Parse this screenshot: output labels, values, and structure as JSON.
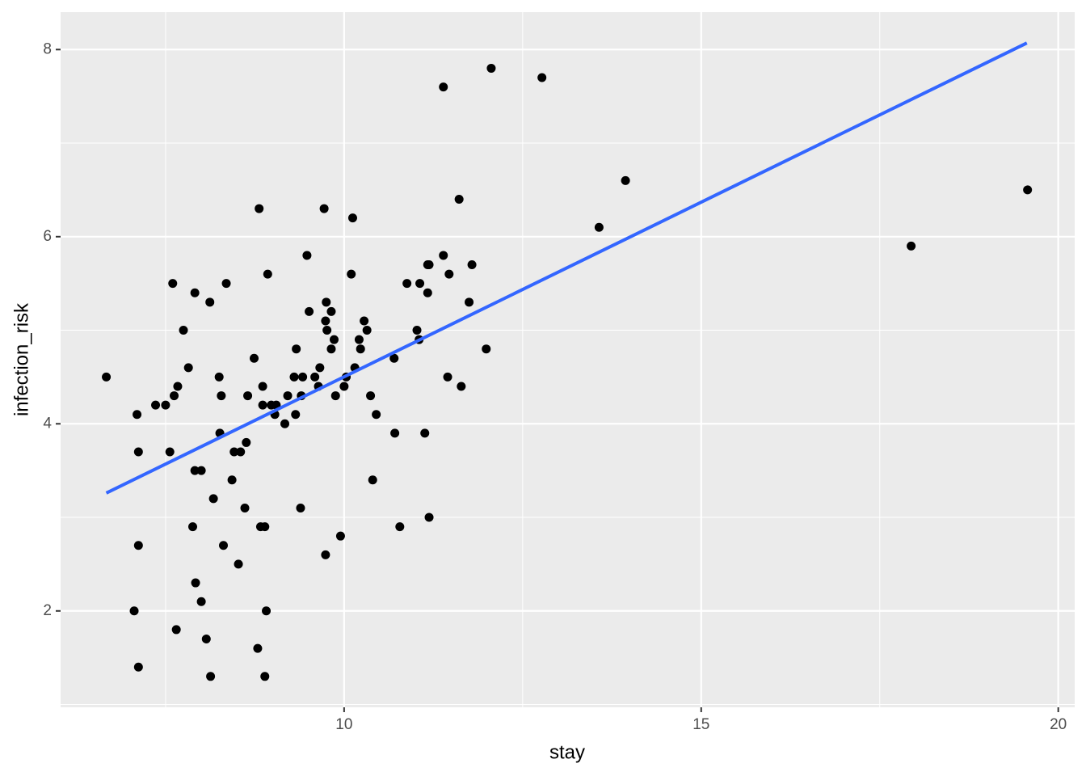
{
  "chart_data": {
    "type": "scatter",
    "x_label": "stay",
    "y_label": "infection_risk",
    "x": [
      6.67,
      7.06,
      7.1,
      7.12,
      7.12,
      7.12,
      7.36,
      7.5,
      7.56,
      7.6,
      7.62,
      7.65,
      7.67,
      7.75,
      7.82,
      7.88,
      7.91,
      7.91,
      7.92,
      8.0,
      8.0,
      8.07,
      8.12,
      8.13,
      8.17,
      8.25,
      8.26,
      8.28,
      8.31,
      8.35,
      8.43,
      8.46,
      8.52,
      8.55,
      8.61,
      8.63,
      8.65,
      8.74,
      8.79,
      8.81,
      8.83,
      8.86,
      8.86,
      8.89,
      8.89,
      8.91,
      8.93,
      8.98,
      9.03,
      9.05,
      9.17,
      9.21,
      9.3,
      9.32,
      9.33,
      9.39,
      9.4,
      9.42,
      9.48,
      9.51,
      9.59,
      9.64,
      9.66,
      9.72,
      9.74,
      9.74,
      9.75,
      9.76,
      9.82,
      9.82,
      9.86,
      9.88,
      9.95,
      10.0,
      10.03,
      10.1,
      10.12,
      10.15,
      10.21,
      10.23,
      10.28,
      10.32,
      10.37,
      10.4,
      10.45,
      10.7,
      10.71,
      10.78,
      10.88,
      11.02,
      11.05,
      11.06,
      11.13,
      11.17,
      11.17,
      11.19,
      11.19,
      11.39,
      11.39,
      11.45,
      11.47,
      11.61,
      11.64,
      11.75,
      11.79,
      11.99,
      12.06,
      12.77,
      13.57,
      13.94,
      17.94,
      19.57
    ],
    "values": [
      4.5,
      2.0,
      4.1,
      3.7,
      2.7,
      1.4,
      4.2,
      4.2,
      3.7,
      5.5,
      4.3,
      1.8,
      4.4,
      5.0,
      4.6,
      2.9,
      5.4,
      3.5,
      2.3,
      3.5,
      2.1,
      1.7,
      5.3,
      1.3,
      3.2,
      4.5,
      3.9,
      4.3,
      2.7,
      5.5,
      3.4,
      3.7,
      2.5,
      3.7,
      3.1,
      3.8,
      4.3,
      4.7,
      1.6,
      6.3,
      2.9,
      4.4,
      4.2,
      2.9,
      1.3,
      2.0,
      5.6,
      4.2,
      4.1,
      4.2,
      4.0,
      4.3,
      4.5,
      4.1,
      4.8,
      3.1,
      4.3,
      4.5,
      5.8,
      5.2,
      4.5,
      4.4,
      4.6,
      6.3,
      2.6,
      5.1,
      5.3,
      5.0,
      5.2,
      4.8,
      4.9,
      4.3,
      2.8,
      4.4,
      4.5,
      5.6,
      6.2,
      4.6,
      4.9,
      4.8,
      5.1,
      5.0,
      4.3,
      3.4,
      4.1,
      4.7,
      3.9,
      2.9,
      5.5,
      5.0,
      4.9,
      5.5,
      3.9,
      5.7,
      5.4,
      3.0,
      5.7,
      7.6,
      5.8,
      4.5,
      5.6,
      6.4,
      4.4,
      5.3,
      5.7,
      4.8,
      7.8,
      7.7,
      6.1,
      6.6,
      5.9,
      6.5
    ],
    "color": "#000000",
    "fit_line": {
      "x": [
        6.67,
        19.56
      ],
      "values": [
        3.26,
        8.07
      ],
      "color": "#3366FF"
    },
    "xlim": [
      6.03,
      20.23
    ],
    "ylim": [
      0.97,
      8.4
    ],
    "xticks": [
      10,
      15,
      20
    ],
    "yticks": [
      2,
      4,
      6,
      8
    ],
    "xminor": [
      7.5,
      12.5,
      17.5
    ],
    "yminor": [
      1,
      3,
      5,
      7
    ],
    "grid": true
  }
}
